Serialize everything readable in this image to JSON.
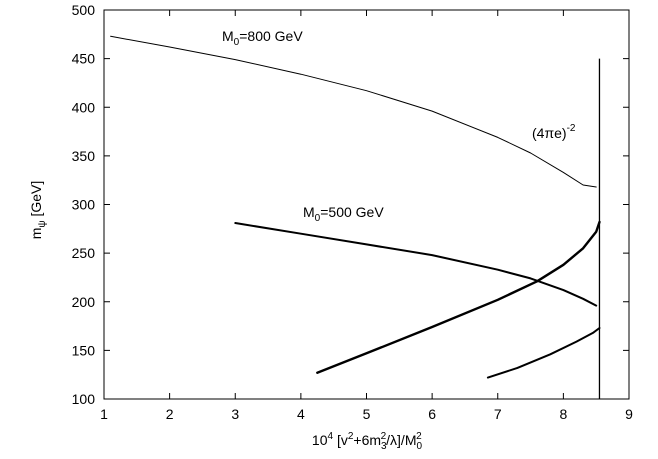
{
  "chart_data": {
    "type": "line",
    "xlim": [
      1,
      9
    ],
    "ylim": [
      100,
      500
    ],
    "x_ticks": [
      "1",
      "2",
      "3",
      "4",
      "5",
      "6",
      "7",
      "8",
      "9"
    ],
    "y_ticks": [
      "100",
      "150",
      "200",
      "250",
      "300",
      "350",
      "400",
      "450",
      "500"
    ],
    "ylabel": {
      "main": "m",
      "sub": "ψ",
      "rest": " [GeV]"
    },
    "xlabel": {
      "prefix": "10",
      "prefix_sup": "4",
      "part1": " [v",
      "part1_sup": "2",
      "part2": "+6m",
      "part2_sub": "3",
      "part2_sup": "2",
      "part3": "/λ]/M",
      "part3_sub": "0",
      "part3_sup": "2"
    },
    "annotations": {
      "m800": {
        "main": "M",
        "sub": "0",
        "rest": "=800 GeV"
      },
      "m500": {
        "main": "M",
        "sub": "0",
        "rest": "=500 GeV"
      },
      "bound": {
        "main": "(4πe)",
        "sup": "-2"
      }
    },
    "vertical_line": {
      "x": 8.55,
      "y_range": [
        100,
        450
      ]
    },
    "grid": false,
    "series": [
      {
        "x": [
          1.1,
          2.0,
          3.0,
          4.0,
          5.0,
          6.0,
          7.0,
          7.5,
          8.0,
          8.3,
          8.5
        ],
        "values": [
          473,
          462,
          449,
          434,
          417,
          396,
          369,
          353,
          333,
          320,
          318
        ]
      },
      {
        "x": [
          3.0,
          4.0,
          5.0,
          6.0,
          7.0,
          7.5,
          8.0,
          8.3,
          8.5
        ],
        "values": [
          281,
          270,
          259,
          248,
          233,
          224,
          212,
          203,
          196
        ]
      },
      {
        "x": [
          4.25,
          5.0,
          6.0,
          7.0,
          7.6,
          8.0,
          8.3,
          8.5,
          8.55
        ],
        "values": [
          127,
          147,
          174,
          202,
          221,
          238,
          255,
          272,
          282
        ]
      },
      {
        "x": [
          6.85,
          7.3,
          7.8,
          8.2,
          8.45,
          8.55
        ],
        "values": [
          122,
          132,
          146,
          159,
          168,
          173
        ]
      }
    ]
  }
}
